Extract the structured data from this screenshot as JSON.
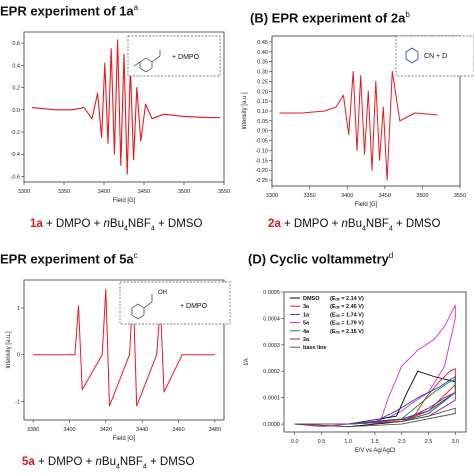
{
  "panels": {
    "A": {
      "title": "EPR experiment of 1a",
      "sup": "a",
      "inset": "+ DMPO",
      "xlabel": "Field [G]",
      "caption": {
        "bold": "1a",
        "rest": " + DMPO + ",
        "n": "n",
        "bu": "Bu",
        "s4": "4",
        "nbf": "NBF",
        "s4b": "4",
        "tail": " + DMSO"
      },
      "yticks": [
        "0.6",
        "0.4",
        "0.2",
        "0.0",
        "-0.2",
        "-0.4",
        "-0.6"
      ],
      "xticks": [
        "3300",
        "3350",
        "3400",
        "3450",
        "3500",
        "3550"
      ]
    },
    "B": {
      "title": "(B) EPR experiment of 2a",
      "sup": "b",
      "inset": "CN + D",
      "ylabel": "Intensity [a.u.]",
      "xlabel": "Field [G]",
      "caption": {
        "bold": "2a",
        "rest": " + DMPO + ",
        "n": "n",
        "bu": "Bu",
        "s4": "4",
        "nbf": "NBF",
        "s4b": "4",
        "tail": " + DMSO"
      },
      "yticks": [
        "0.45",
        "0.40",
        "0.35",
        "0.30",
        "0.25",
        "0.20",
        "0.15",
        "0.10",
        "0.05",
        "0.00",
        "-0.05",
        "-0.10",
        "-0.15",
        "-0.20",
        "-0.25"
      ],
      "xticks": [
        "3300",
        "3350",
        "3400",
        "3450",
        "3500",
        "3550"
      ]
    },
    "C": {
      "title": "EPR experiment of 5a",
      "sup": "c",
      "inset": "+ DMPO",
      "inset_oh": "OH",
      "ylabel": "Intensity [a.u.]",
      "xlabel": "Field [G]",
      "caption": {
        "bold": "5a",
        "rest": " + DMPO + ",
        "n": "n",
        "bu": "Bu",
        "s4": "4",
        "nbf": "NBF",
        "s4b": "4",
        "tail": " + DMSO"
      },
      "yticks": [
        "1",
        "0",
        "-1"
      ],
      "xticks": [
        "3380",
        "3400",
        "3420",
        "3440",
        "3460",
        "3480"
      ]
    },
    "D": {
      "title": "(D) Cyclic voltammetry",
      "sup": "d",
      "ylabel": "I/A",
      "xlabel": "E/V vs Ag/AgCl",
      "yticks": [
        "0.0005",
        "0.0004",
        "0.0003",
        "0.0002",
        "0.0001",
        "0.0000"
      ],
      "xticks": [
        "0.0",
        "0.5",
        "1.0",
        "1.5",
        "2.0",
        "2.5",
        "3.0"
      ]
    }
  },
  "colors": {
    "epr": "#e8191f",
    "caption_red": "#d7191c",
    "axis": "#333333",
    "inset_border": "#555555",
    "inset_blue": "#1a3ccf"
  },
  "chart_data": [
    {
      "type": "line",
      "title": "EPR experiment of 1a",
      "xlabel": "Field [G]",
      "ylabel": "",
      "xlim": [
        3300,
        3550
      ],
      "ylim": [
        -0.65,
        0.7
      ],
      "series": [
        {
          "name": "",
          "x": [
            3310,
            3340,
            3360,
            3375,
            3385,
            3392,
            3397,
            3401,
            3405,
            3409,
            3413,
            3417,
            3421,
            3425,
            3429,
            3433,
            3437,
            3441,
            3446,
            3452,
            3460,
            3475,
            3500,
            3530,
            3545
          ],
          "y": [
            0.02,
            0.0,
            0.0,
            0.02,
            -0.08,
            0.15,
            -0.25,
            0.42,
            -0.3,
            0.55,
            -0.4,
            0.63,
            -0.5,
            0.5,
            -0.58,
            0.38,
            -0.45,
            0.2,
            -0.28,
            0.05,
            -0.08,
            -0.04,
            -0.06,
            -0.07,
            -0.07
          ]
        }
      ]
    },
    {
      "type": "line",
      "title": "(B) EPR experiment of 2a",
      "xlabel": "Field [G]",
      "ylabel": "Intensity [a.u.]",
      "xlim": [
        3300,
        3550
      ],
      "ylim": [
        -0.28,
        0.48
      ],
      "series": [
        {
          "name": "",
          "x": [
            3310,
            3340,
            3370,
            3385,
            3395,
            3402,
            3408,
            3413,
            3418,
            3423,
            3428,
            3433,
            3438,
            3443,
            3448,
            3453,
            3460,
            3470,
            3490,
            3520
          ],
          "y": [
            0.09,
            0.09,
            0.1,
            0.12,
            0.18,
            -0.02,
            0.3,
            -0.1,
            0.28,
            -0.12,
            0.2,
            -0.2,
            0.25,
            -0.15,
            0.12,
            -0.25,
            0.3,
            0.05,
            0.09,
            0.08
          ]
        }
      ]
    },
    {
      "type": "line",
      "title": "EPR experiment of 5a",
      "xlabel": "Field [G]",
      "ylabel": "Intensity [a.u.]",
      "xlim": [
        3375,
        3485
      ],
      "ylim": [
        -1.4,
        1.6
      ],
      "series": [
        {
          "name": "",
          "x": [
            3380,
            3392,
            3403,
            3405,
            3407,
            3418,
            3420,
            3422,
            3433,
            3435,
            3437,
            3448,
            3450,
            3452,
            3462,
            3480
          ],
          "y": [
            0.0,
            0.0,
            0.0,
            1.05,
            -0.75,
            0.0,
            1.4,
            -1.1,
            0.0,
            1.4,
            -1.1,
            0.0,
            1.05,
            -0.8,
            0.0,
            0.0
          ]
        }
      ]
    },
    {
      "type": "line",
      "title": "(D) Cyclic voltammetry",
      "xlabel": "E/V vs Ag/AgCl",
      "ylabel": "I/A",
      "xlim": [
        -0.2,
        3.2
      ],
      "ylim": [
        -3e-05,
        0.0005
      ],
      "legend_position": "top-left",
      "legend": [
        {
          "name": "DMSO",
          "eox": "(Eₒₓ = 2.14 V)",
          "color": "#000000"
        },
        {
          "name": "3a",
          "eox": "(Eₒₓ = 2.46 V)",
          "color": "#e8191f"
        },
        {
          "name": "1a",
          "eox": "(Eₒₓ = 1.74 V)",
          "color": "#1f3fd1"
        },
        {
          "name": "5a",
          "eox": "(Eₒₓ = 1.79 V)",
          "color": "#d82bd8"
        },
        {
          "name": "4a",
          "eox": "(Eₒₓ = 2.16 V)",
          "color": "#1a8f2a"
        },
        {
          "name": "2a",
          "eox": "",
          "color": "#8c1a8c"
        },
        {
          "name": "base line",
          "eox": "",
          "color": "#555555"
        }
      ],
      "series": [
        {
          "name": "5a",
          "color": "#d82bd8",
          "x": [
            0,
            1,
            1.6,
            1.75,
            2.0,
            2.3,
            2.6,
            2.8,
            3.0,
            3.0,
            2.8,
            2.5,
            2.2,
            2.0,
            1.8,
            1.5,
            1.0,
            0.5,
            0
          ],
          "y": [
            0.0,
            0.0,
            1e-05,
            0.0001,
            0.00022,
            0.00028,
            0.00032,
            0.00037,
            0.00045,
            0.0004,
            0.00022,
            0.00012,
            8e-05,
            5e-05,
            3e-05,
            1e-05,
            0.0,
            -1e-05,
            0.0
          ]
        },
        {
          "name": "DMSO",
          "color": "#000000",
          "x": [
            0,
            1,
            1.9,
            2.1,
            2.3,
            2.6,
            2.8,
            3.0,
            3.0,
            2.5,
            2.0,
            1.5,
            1.0,
            0
          ],
          "y": [
            0.0,
            0.0,
            3e-05,
            0.00012,
            0.0002,
            0.00018,
            0.00017,
            0.00016,
            0.00012,
            4e-05,
            1e-05,
            0.0,
            -1e-05,
            0.0
          ]
        },
        {
          "name": "3a",
          "color": "#e8191f",
          "x": [
            0,
            1,
            2.2,
            2.45,
            2.7,
            2.9,
            3.0,
            3.0,
            2.5,
            2.0,
            1.0,
            0
          ],
          "y": [
            0.0,
            0.0,
            2e-05,
            0.0001,
            0.00016,
            0.0002,
            0.00021,
            0.00015,
            5e-05,
            1e-05,
            0.0,
            0.0
          ]
        },
        {
          "name": "1a",
          "color": "#1f3fd1",
          "x": [
            0,
            1,
            1.6,
            1.9,
            2.3,
            2.7,
            3.0,
            3.0,
            2.5,
            2.0,
            1.0,
            0
          ],
          "y": [
            0.0,
            0.0,
            2e-05,
            5e-05,
            0.0001,
            0.00014,
            0.00018,
            0.00012,
            5e-05,
            2e-05,
            0.0,
            0.0
          ]
        },
        {
          "name": "4a",
          "color": "#1a8f2a",
          "x": [
            0,
            1,
            2.0,
            2.3,
            2.6,
            2.9,
            3.0,
            3.0,
            2.5,
            2.0,
            1.0,
            0
          ],
          "y": [
            0.0,
            0.0,
            2e-05,
            7e-05,
            0.00012,
            0.00016,
            0.00017,
            0.00012,
            4e-05,
            1e-05,
            0.0,
            0.0
          ]
        },
        {
          "name": "2a",
          "color": "#8c1a8c",
          "x": [
            0,
            1,
            2.1,
            2.5,
            2.8,
            3.0,
            3.0,
            2.5,
            2.0,
            1.0,
            0
          ],
          "y": [
            0.0,
            0.0,
            2e-05,
            6e-05,
            0.0001,
            0.00012,
            9e-05,
            3e-05,
            1e-05,
            0.0,
            0.0
          ]
        },
        {
          "name": "base line",
          "color": "#555555",
          "x": [
            0,
            1,
            2.0,
            2.5,
            3.0,
            3.0,
            2.0,
            1.0,
            0
          ],
          "y": [
            0.0,
            0.0,
            1e-05,
            3e-05,
            6e-05,
            4e-05,
            0.0,
            -1e-05,
            0.0
          ]
        }
      ]
    }
  ]
}
